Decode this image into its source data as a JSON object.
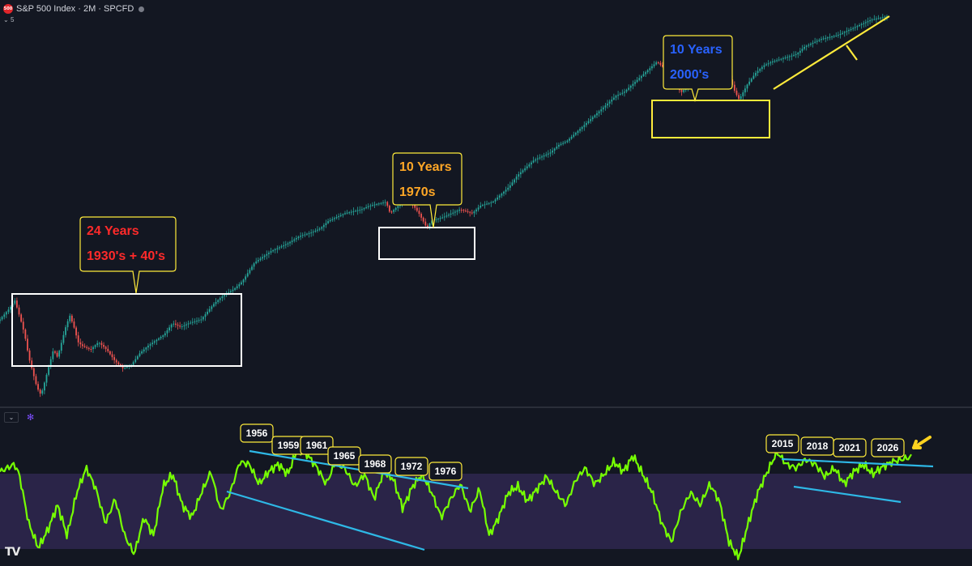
{
  "header": {
    "logo_text": "500",
    "title": "S&P 500 Index · 2M · SPCFD",
    "sub_label": "5"
  },
  "pane": {
    "collapse_icon": "chevron-down-icon",
    "settings_icon": "gear-icon"
  },
  "branding": {
    "tv_logo": "TV"
  },
  "colors": {
    "background": "#131722",
    "candle_up": "#26a69a",
    "candle_down": "#ef5350",
    "oscillator": "#76ff03",
    "trendline_yellow": "#ffeb3b",
    "trendline_cyan": "#2eb8e6",
    "zone_purple": "#2a2448"
  },
  "chart_data": [
    {
      "type": "candlestick",
      "symbol": "S&P 500 Index",
      "timeframe": "2M",
      "source": "SPCFD",
      "scale": "log",
      "price_path": [
        [
          0,
          0.2
        ],
        [
          0.012,
          0.23
        ],
        [
          0.018,
          0.25
        ],
        [
          0.025,
          0.2
        ],
        [
          0.03,
          0.16
        ],
        [
          0.035,
          0.1
        ],
        [
          0.04,
          0.06
        ],
        [
          0.045,
          0.02
        ],
        [
          0.05,
          0.0
        ],
        [
          0.055,
          0.04
        ],
        [
          0.06,
          0.08
        ],
        [
          0.065,
          0.12
        ],
        [
          0.07,
          0.1
        ],
        [
          0.075,
          0.14
        ],
        [
          0.08,
          0.18
        ],
        [
          0.085,
          0.21
        ],
        [
          0.09,
          0.18
        ],
        [
          0.095,
          0.14
        ],
        [
          0.1,
          0.13
        ],
        [
          0.11,
          0.12
        ],
        [
          0.12,
          0.14
        ],
        [
          0.13,
          0.12
        ],
        [
          0.14,
          0.09
        ],
        [
          0.15,
          0.07
        ],
        [
          0.16,
          0.08
        ],
        [
          0.17,
          0.11
        ],
        [
          0.18,
          0.13
        ],
        [
          0.2,
          0.16
        ],
        [
          0.21,
          0.19
        ],
        [
          0.22,
          0.18
        ],
        [
          0.23,
          0.19
        ],
        [
          0.245,
          0.2
        ],
        [
          0.26,
          0.24
        ],
        [
          0.27,
          0.26
        ],
        [
          0.285,
          0.28
        ],
        [
          0.295,
          0.3
        ],
        [
          0.31,
          0.35
        ],
        [
          0.33,
          0.38
        ],
        [
          0.35,
          0.4
        ],
        [
          0.365,
          0.42
        ],
        [
          0.38,
          0.43
        ],
        [
          0.39,
          0.44
        ],
        [
          0.4,
          0.46
        ],
        [
          0.42,
          0.48
        ],
        [
          0.44,
          0.49
        ],
        [
          0.45,
          0.5
        ],
        [
          0.47,
          0.51
        ],
        [
          0.475,
          0.48
        ],
        [
          0.49,
          0.51
        ],
        [
          0.5,
          0.51
        ],
        [
          0.51,
          0.48
        ],
        [
          0.52,
          0.44
        ],
        [
          0.525,
          0.46
        ],
        [
          0.54,
          0.47
        ],
        [
          0.56,
          0.49
        ],
        [
          0.575,
          0.48
        ],
        [
          0.585,
          0.5
        ],
        [
          0.6,
          0.51
        ],
        [
          0.61,
          0.53
        ],
        [
          0.62,
          0.55
        ],
        [
          0.63,
          0.58
        ],
        [
          0.64,
          0.6
        ],
        [
          0.65,
          0.62
        ],
        [
          0.66,
          0.63
        ],
        [
          0.67,
          0.64
        ],
        [
          0.68,
          0.66
        ],
        [
          0.69,
          0.67
        ],
        [
          0.7,
          0.69
        ],
        [
          0.71,
          0.71
        ],
        [
          0.72,
          0.73
        ],
        [
          0.73,
          0.75
        ],
        [
          0.74,
          0.77
        ],
        [
          0.75,
          0.79
        ],
        [
          0.76,
          0.8
        ],
        [
          0.77,
          0.82
        ],
        [
          0.78,
          0.84
        ],
        [
          0.79,
          0.86
        ],
        [
          0.8,
          0.88
        ],
        [
          0.81,
          0.86
        ],
        [
          0.82,
          0.82
        ],
        [
          0.83,
          0.8
        ],
        [
          0.84,
          0.82
        ],
        [
          0.85,
          0.84
        ],
        [
          0.86,
          0.85
        ],
        [
          0.87,
          0.86
        ],
        [
          0.88,
          0.87
        ],
        [
          0.89,
          0.83
        ],
        [
          0.895,
          0.8
        ],
        [
          0.9,
          0.78
        ],
        [
          0.91,
          0.82
        ],
        [
          0.92,
          0.85
        ],
        [
          0.93,
          0.87
        ],
        [
          0.94,
          0.88
        ],
        [
          0.955,
          0.89
        ],
        [
          0.97,
          0.9
        ],
        [
          0.98,
          0.92
        ],
        [
          0.99,
          0.93
        ],
        [
          1.0,
          0.94
        ],
        [
          1.02,
          0.95
        ],
        [
          1.04,
          0.97
        ],
        [
          1.06,
          0.99
        ],
        [
          1.08,
          1.0
        ]
      ],
      "annotations": [
        {
          "line1": "24 Years",
          "line2": "1930's + 40's",
          "text_color": "#ff2a2a"
        },
        {
          "line1": "10 Years",
          "line2": "1970s",
          "text_color": "#ffa726"
        },
        {
          "line1": "10 Years",
          "line2": "2000's",
          "text_color": "#2962ff"
        }
      ],
      "boxes": [
        {
          "label": "1930's + 40's range",
          "border": "#ffffff"
        },
        {
          "label": "1970s range",
          "border": "#ffffff"
        },
        {
          "label": "2000's range",
          "border": "#ffeb3b"
        }
      ]
    },
    {
      "type": "line",
      "name": "",
      "oscillator_path": [
        [
          0,
          0.72
        ],
        [
          0.015,
          0.78
        ],
        [
          0.02,
          0.7
        ],
        [
          0.03,
          0.3
        ],
        [
          0.04,
          0.1
        ],
        [
          0.05,
          0.25
        ],
        [
          0.06,
          0.45
        ],
        [
          0.07,
          0.2
        ],
        [
          0.08,
          0.55
        ],
        [
          0.09,
          0.75
        ],
        [
          0.1,
          0.58
        ],
        [
          0.11,
          0.3
        ],
        [
          0.12,
          0.5
        ],
        [
          0.13,
          0.2
        ],
        [
          0.14,
          0.05
        ],
        [
          0.15,
          0.35
        ],
        [
          0.16,
          0.2
        ],
        [
          0.17,
          0.6
        ],
        [
          0.18,
          0.7
        ],
        [
          0.19,
          0.45
        ],
        [
          0.2,
          0.35
        ],
        [
          0.21,
          0.55
        ],
        [
          0.22,
          0.72
        ],
        [
          0.23,
          0.4
        ],
        [
          0.24,
          0.55
        ],
        [
          0.25,
          0.8
        ],
        [
          0.26,
          0.78
        ],
        [
          0.27,
          0.62
        ],
        [
          0.28,
          0.72
        ],
        [
          0.29,
          0.78
        ],
        [
          0.3,
          0.7
        ],
        [
          0.31,
          0.9
        ],
        [
          0.32,
          0.86
        ],
        [
          0.33,
          0.76
        ],
        [
          0.34,
          0.62
        ],
        [
          0.35,
          0.8
        ],
        [
          0.36,
          0.74
        ],
        [
          0.37,
          0.6
        ],
        [
          0.38,
          0.7
        ],
        [
          0.39,
          0.5
        ],
        [
          0.4,
          0.72
        ],
        [
          0.41,
          0.66
        ],
        [
          0.42,
          0.42
        ],
        [
          0.43,
          0.6
        ],
        [
          0.44,
          0.7
        ],
        [
          0.45,
          0.55
        ],
        [
          0.46,
          0.35
        ],
        [
          0.47,
          0.5
        ],
        [
          0.48,
          0.62
        ],
        [
          0.49,
          0.4
        ],
        [
          0.5,
          0.58
        ],
        [
          0.51,
          0.2
        ],
        [
          0.52,
          0.35
        ],
        [
          0.53,
          0.55
        ],
        [
          0.54,
          0.6
        ],
        [
          0.55,
          0.48
        ],
        [
          0.56,
          0.58
        ],
        [
          0.57,
          0.68
        ],
        [
          0.58,
          0.55
        ],
        [
          0.59,
          0.45
        ],
        [
          0.6,
          0.65
        ],
        [
          0.61,
          0.75
        ],
        [
          0.62,
          0.62
        ],
        [
          0.63,
          0.7
        ],
        [
          0.64,
          0.8
        ],
        [
          0.65,
          0.72
        ],
        [
          0.66,
          0.85
        ],
        [
          0.67,
          0.7
        ],
        [
          0.68,
          0.55
        ],
        [
          0.69,
          0.3
        ],
        [
          0.7,
          0.15
        ],
        [
          0.71,
          0.4
        ],
        [
          0.72,
          0.55
        ],
        [
          0.73,
          0.45
        ],
        [
          0.74,
          0.62
        ],
        [
          0.75,
          0.48
        ],
        [
          0.76,
          0.15
        ],
        [
          0.77,
          0.02
        ],
        [
          0.78,
          0.3
        ],
        [
          0.79,
          0.55
        ],
        [
          0.8,
          0.72
        ],
        [
          0.81,
          0.88
        ],
        [
          0.82,
          0.78
        ],
        [
          0.83,
          0.75
        ],
        [
          0.84,
          0.82
        ],
        [
          0.85,
          0.78
        ],
        [
          0.86,
          0.68
        ],
        [
          0.87,
          0.75
        ],
        [
          0.88,
          0.62
        ],
        [
          0.89,
          0.72
        ],
        [
          0.9,
          0.78
        ],
        [
          0.91,
          0.7
        ],
        [
          0.92,
          0.76
        ],
        [
          0.93,
          0.8
        ],
        [
          0.95,
          0.84
        ]
      ],
      "year_labels": [
        "1956",
        "1959",
        "1961",
        "1965",
        "1968",
        "1972",
        "1976",
        "2015",
        "2018",
        "2021",
        "2026"
      ]
    }
  ]
}
